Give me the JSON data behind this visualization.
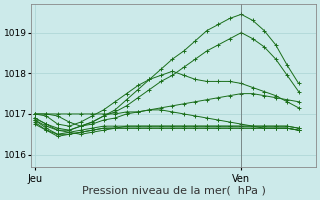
{
  "bg_color": "#cceaea",
  "grid_color": "#b0d8d8",
  "line_color": "#1a6e1a",
  "xlabel": "Pression niveau de la mer(  hPa )",
  "xlabel_fontsize": 8,
  "xtick_labels": [
    "Jeu",
    "Ven"
  ],
  "xtick_positions": [
    0,
    18
  ],
  "yticks": [
    1016,
    1017,
    1018,
    1019
  ],
  "ylim": [
    1015.7,
    1019.7
  ],
  "xlim": [
    -0.3,
    24.5
  ],
  "vline_x": 18,
  "series": [
    [
      1016.9,
      1016.75,
      1016.6,
      1016.6,
      1016.7,
      1016.8,
      1016.95,
      1017.1,
      1017.35,
      1017.6,
      1017.85,
      1018.1,
      1018.35,
      1018.55,
      1018.8,
      1019.05,
      1019.2,
      1019.35,
      1019.45,
      1019.3,
      1019.05,
      1018.7,
      1018.2,
      1017.75
    ],
    [
      1016.9,
      1016.75,
      1016.65,
      1016.6,
      1016.7,
      1016.8,
      1016.95,
      1017.05,
      1017.2,
      1017.4,
      1017.6,
      1017.8,
      1017.95,
      1018.15,
      1018.35,
      1018.55,
      1018.7,
      1018.85,
      1019.0,
      1018.85,
      1018.65,
      1018.35,
      1017.95,
      1017.55
    ],
    [
      1017.0,
      1017.0,
      1017.0,
      1017.0,
      1017.0,
      1017.0,
      1017.0,
      1017.0,
      1017.05,
      1017.05,
      1017.1,
      1017.15,
      1017.2,
      1017.25,
      1017.3,
      1017.35,
      1017.4,
      1017.45,
      1017.5,
      1017.5,
      1017.45,
      1017.4,
      1017.35,
      1017.3
    ],
    [
      1016.85,
      1016.65,
      1016.5,
      1016.55,
      1016.6,
      1016.65,
      1016.7,
      1016.7,
      1016.7,
      1016.7,
      1016.7,
      1016.7,
      1016.7,
      1016.7,
      1016.7,
      1016.7,
      1016.7,
      1016.7,
      1016.7,
      1016.7,
      1016.7,
      1016.7,
      1016.7,
      1016.65
    ],
    [
      1016.8,
      1016.6,
      1016.45,
      1016.5,
      1016.55,
      1016.6,
      1016.65,
      1016.65,
      1016.65,
      1016.65,
      1016.65,
      1016.65,
      1016.65,
      1016.65,
      1016.65,
      1016.65,
      1016.65,
      1016.65,
      1016.65,
      1016.65,
      1016.65,
      1016.65,
      1016.65,
      1016.6
    ],
    [
      1016.75,
      1016.6,
      1016.5,
      1016.5,
      1016.55,
      1016.6,
      1016.65,
      1016.65,
      1016.65,
      1016.65,
      1016.65,
      1016.65,
      1016.65,
      1016.65,
      1016.65,
      1016.65,
      1016.65,
      1016.65,
      1016.65,
      1016.65,
      1016.65,
      1016.65,
      1016.65,
      1016.6
    ],
    [
      1017.0,
      1017.0,
      1016.95,
      1016.8,
      1016.7,
      1016.75,
      1016.85,
      1016.9,
      1017.0,
      1017.05,
      1017.1,
      1017.1,
      1017.05,
      1017.0,
      1016.95,
      1016.9,
      1016.85,
      1016.8,
      1016.75,
      1016.7,
      1016.65,
      1016.65,
      1016.65,
      1016.6
    ],
    [
      1016.85,
      1016.7,
      1016.6,
      1016.55,
      1016.5,
      1016.55,
      1016.6,
      1016.65,
      1016.7,
      1016.7,
      1016.7,
      1016.7,
      1016.7,
      1016.7,
      1016.7,
      1016.7,
      1016.7,
      1016.7,
      1016.7,
      1016.7,
      1016.7,
      1016.7,
      1016.7,
      1016.65
    ]
  ],
  "zigzag_series": {
    "x": [
      0,
      1,
      2,
      3,
      4,
      5,
      6,
      7,
      8,
      9,
      10,
      11,
      12,
      13,
      14,
      15,
      16,
      17,
      18,
      19,
      20,
      21,
      22,
      23
    ],
    "y": [
      1017.0,
      1016.95,
      1016.75,
      1016.7,
      1016.8,
      1016.95,
      1017.1,
      1017.3,
      1017.5,
      1017.7,
      1017.85,
      1017.95,
      1018.05,
      1017.95,
      1017.85,
      1017.8,
      1017.8,
      1017.8,
      1017.75,
      1017.65,
      1017.55,
      1017.45,
      1017.3,
      1017.15
    ]
  }
}
